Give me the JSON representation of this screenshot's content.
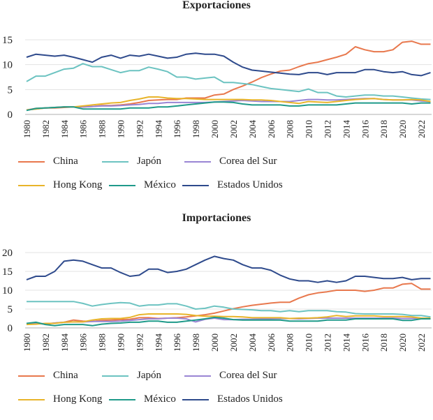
{
  "chart_data": [
    {
      "id": "exp",
      "type": "line",
      "title": "Exportaciones",
      "xlabel": "",
      "ylabel": "",
      "ylim": [
        0,
        17
      ],
      "yticks": [
        0,
        5,
        10,
        15
      ],
      "x": [
        1980,
        1981,
        1982,
        1983,
        1984,
        1985,
        1986,
        1987,
        1988,
        1989,
        1990,
        1991,
        1992,
        1993,
        1994,
        1995,
        1996,
        1997,
        1998,
        1999,
        2000,
        2001,
        2002,
        2003,
        2004,
        2005,
        2006,
        2007,
        2008,
        2009,
        2010,
        2011,
        2012,
        2013,
        2014,
        2015,
        2016,
        2017,
        2018,
        2019,
        2020,
        2021,
        2022,
        2023
      ],
      "xticks": [
        "1980",
        "1982",
        "1984",
        "1986",
        "1988",
        "1990",
        "1992",
        "1994",
        "1996",
        "1998",
        "2000",
        "2002",
        "2004",
        "2006",
        "2008",
        "2010",
        "2012",
        "2014",
        "2016",
        "2018",
        "2020",
        "2022"
      ],
      "grid": true,
      "legend_position": "bottom",
      "series": [
        {
          "name": "China",
          "color": "#e8784d",
          "values": [
            0.9,
            1.2,
            1.3,
            1.3,
            1.4,
            1.5,
            1.5,
            1.6,
            1.8,
            1.8,
            1.9,
            2.1,
            2.4,
            2.8,
            2.9,
            3.0,
            3.0,
            3.3,
            3.3,
            3.3,
            3.9,
            4.1,
            5.0,
            5.7,
            6.5,
            7.4,
            8.1,
            8.7,
            8.9,
            9.6,
            10.2,
            10.5,
            11.0,
            11.5,
            12.1,
            13.6,
            13.0,
            12.6,
            12.6,
            13.0,
            14.5,
            14.7,
            14.1,
            14.1
          ]
        },
        {
          "name": "Japón",
          "color": "#6cc3c1",
          "values": [
            6.6,
            7.7,
            7.7,
            8.4,
            9.1,
            9.3,
            10.2,
            9.6,
            9.6,
            9.0,
            8.4,
            8.8,
            8.8,
            9.5,
            9.1,
            8.6,
            7.5,
            7.5,
            7.1,
            7.3,
            7.5,
            6.4,
            6.4,
            6.2,
            6.0,
            5.6,
            5.2,
            5.0,
            4.8,
            4.6,
            5.1,
            4.4,
            4.4,
            3.7,
            3.5,
            3.7,
            3.9,
            3.9,
            3.7,
            3.7,
            3.5,
            3.3,
            3.1,
            3.0
          ]
        },
        {
          "name": "Corea del Sur",
          "color": "#9a85d4",
          "values": [
            0.9,
            1.1,
            1.3,
            1.4,
            1.5,
            1.5,
            1.5,
            1.6,
            1.7,
            1.7,
            1.8,
            1.9,
            2.0,
            2.2,
            2.2,
            2.4,
            2.4,
            2.4,
            2.4,
            2.4,
            2.5,
            2.6,
            2.7,
            2.8,
            2.7,
            2.6,
            2.6,
            2.6,
            2.6,
            2.8,
            3.0,
            3.0,
            2.9,
            2.9,
            3.0,
            3.1,
            3.2,
            3.2,
            3.0,
            2.9,
            2.9,
            2.9,
            2.7,
            2.6
          ]
        },
        {
          "name": "Hong Kong",
          "color": "#e8b42a",
          "values": [
            0.9,
            1.1,
            1.3,
            1.4,
            1.5,
            1.5,
            1.7,
            1.9,
            2.1,
            2.3,
            2.4,
            2.8,
            3.1,
            3.5,
            3.5,
            3.3,
            3.2,
            3.2,
            3.1,
            3.0,
            3.0,
            3.0,
            3.0,
            3.0,
            2.9,
            2.9,
            2.8,
            2.6,
            2.4,
            2.2,
            2.6,
            2.5,
            2.4,
            2.6,
            2.8,
            3.0,
            3.1,
            3.2,
            3.0,
            2.9,
            2.9,
            3.0,
            2.9,
            2.6
          ]
        },
        {
          "name": "México",
          "color": "#1f9a8a",
          "values": [
            0.8,
            1.2,
            1.3,
            1.4,
            1.5,
            1.5,
            1.1,
            1.1,
            1.1,
            1.1,
            1.1,
            1.3,
            1.3,
            1.3,
            1.5,
            1.5,
            1.7,
            1.9,
            2.1,
            2.3,
            2.5,
            2.5,
            2.4,
            2.1,
            1.9,
            1.9,
            1.9,
            1.9,
            1.7,
            1.7,
            1.9,
            1.9,
            1.9,
            1.9,
            2.1,
            2.3,
            2.3,
            2.3,
            2.3,
            2.3,
            2.3,
            2.1,
            2.3,
            2.3
          ]
        },
        {
          "name": "Estados Unidos",
          "color": "#2e4a8c",
          "values": [
            11.5,
            12.1,
            11.9,
            11.7,
            11.9,
            11.5,
            11.0,
            10.5,
            11.5,
            11.9,
            11.3,
            11.9,
            11.7,
            12.1,
            11.7,
            11.3,
            11.5,
            12.1,
            12.3,
            12.1,
            12.1,
            11.7,
            10.5,
            9.5,
            8.9,
            8.7,
            8.5,
            8.3,
            8.1,
            8.0,
            8.4,
            8.4,
            8.0,
            8.4,
            8.4,
            8.4,
            9.0,
            9.0,
            8.6,
            8.4,
            8.6,
            8.0,
            7.8,
            8.4
          ]
        }
      ]
    },
    {
      "id": "imp",
      "type": "line",
      "title": "Importaciones",
      "xlabel": "",
      "ylabel": "",
      "ylim": [
        0,
        21
      ],
      "yticks": [
        0,
        5,
        10,
        15,
        20
      ],
      "x": [
        1980,
        1981,
        1982,
        1983,
        1984,
        1985,
        1986,
        1987,
        1988,
        1989,
        1990,
        1991,
        1992,
        1993,
        1994,
        1995,
        1996,
        1997,
        1998,
        1999,
        2000,
        2001,
        2002,
        2003,
        2004,
        2005,
        2006,
        2007,
        2008,
        2009,
        2010,
        2011,
        2012,
        2013,
        2014,
        2015,
        2016,
        2017,
        2018,
        2019,
        2020,
        2021,
        2022,
        2023
      ],
      "xticks": [
        "1980",
        "1982",
        "1984",
        "1986",
        "1988",
        "1990",
        "1992",
        "1994",
        "1996",
        "1998",
        "2000",
        "2002",
        "2004",
        "2006",
        "2008",
        "2010",
        "2012",
        "2014",
        "2016",
        "2018",
        "2020",
        "2022"
      ],
      "grid": true,
      "legend_position": "bottom",
      "series": [
        {
          "name": "China",
          "color": "#e8784d",
          "values": [
            1.1,
            1.2,
            1.0,
            1.3,
            1.5,
            2.1,
            1.8,
            1.7,
            2.0,
            2.1,
            2.2,
            2.3,
            2.7,
            2.7,
            2.5,
            2.6,
            2.7,
            2.9,
            3.2,
            3.5,
            3.9,
            4.5,
            5.1,
            5.6,
            6.0,
            6.3,
            6.6,
            6.8,
            6.8,
            7.9,
            8.8,
            9.3,
            9.6,
            10.0,
            10.0,
            10.0,
            9.7,
            10.0,
            10.6,
            10.6,
            11.6,
            11.8,
            10.3,
            10.3
          ]
        },
        {
          "name": "Japón",
          "color": "#6cc3c1",
          "values": [
            7.0,
            7.0,
            7.0,
            7.0,
            7.0,
            7.0,
            6.5,
            5.8,
            6.2,
            6.5,
            6.7,
            6.6,
            5.8,
            6.1,
            6.1,
            6.4,
            6.4,
            5.8,
            5.0,
            5.2,
            5.8,
            5.5,
            5.0,
            4.9,
            4.8,
            4.6,
            4.6,
            4.3,
            4.6,
            4.3,
            4.6,
            4.6,
            4.6,
            4.3,
            4.2,
            3.8,
            3.7,
            3.7,
            3.7,
            3.7,
            3.6,
            3.3,
            3.3,
            2.9
          ]
        },
        {
          "name": "Corea del Sur",
          "color": "#9a85d4",
          "values": [
            1.1,
            1.2,
            1.1,
            1.3,
            1.5,
            1.6,
            1.6,
            1.7,
            1.7,
            1.7,
            1.8,
            2.0,
            2.2,
            2.4,
            2.4,
            2.6,
            2.6,
            2.4,
            1.6,
            2.3,
            2.6,
            2.2,
            2.2,
            2.3,
            2.3,
            2.4,
            2.4,
            2.5,
            2.5,
            2.4,
            2.5,
            2.6,
            2.6,
            2.6,
            2.6,
            2.6,
            2.6,
            2.6,
            2.6,
            2.6,
            2.5,
            2.5,
            2.6,
            2.6
          ]
        },
        {
          "name": "Hong Kong",
          "color": "#e8b42a",
          "values": [
            0.9,
            1.0,
            1.2,
            1.2,
            1.5,
            1.6,
            1.6,
            2.1,
            2.4,
            2.5,
            2.5,
            2.8,
            3.5,
            3.7,
            3.7,
            3.7,
            3.7,
            3.6,
            3.3,
            3.1,
            3.1,
            3.0,
            3.0,
            2.9,
            2.7,
            2.7,
            2.7,
            2.7,
            2.5,
            2.6,
            2.6,
            2.7,
            2.9,
            3.3,
            3.0,
            3.2,
            3.2,
            3.2,
            3.0,
            3.0,
            3.0,
            2.9,
            2.6,
            2.6
          ]
        },
        {
          "name": "México",
          "color": "#1f9a8a",
          "values": [
            1.2,
            1.5,
            0.9,
            0.6,
            0.9,
            0.9,
            0.9,
            0.6,
            1.0,
            1.2,
            1.3,
            1.5,
            1.5,
            1.8,
            1.8,
            1.5,
            1.5,
            1.8,
            2.1,
            2.4,
            2.8,
            2.6,
            2.2,
            2.1,
            2.1,
            2.1,
            2.1,
            2.1,
            1.8,
            1.8,
            1.8,
            1.8,
            2.1,
            2.1,
            2.1,
            2.4,
            2.4,
            2.4,
            2.4,
            2.4,
            2.0,
            2.0,
            2.4,
            2.4
          ]
        },
        {
          "name": "Estados Unidos",
          "color": "#2e4a8c",
          "values": [
            12.8,
            13.7,
            13.7,
            15.0,
            17.7,
            18.0,
            17.7,
            16.8,
            15.9,
            15.9,
            14.7,
            13.7,
            14.0,
            15.6,
            15.6,
            14.7,
            15.0,
            15.6,
            16.8,
            18.0,
            19.0,
            18.4,
            18.0,
            16.8,
            15.9,
            15.9,
            15.3,
            14.0,
            13.0,
            12.5,
            12.5,
            12.1,
            12.5,
            12.1,
            12.5,
            13.7,
            13.7,
            13.4,
            13.1,
            13.1,
            13.4,
            12.8,
            13.1,
            13.1
          ]
        }
      ]
    }
  ]
}
